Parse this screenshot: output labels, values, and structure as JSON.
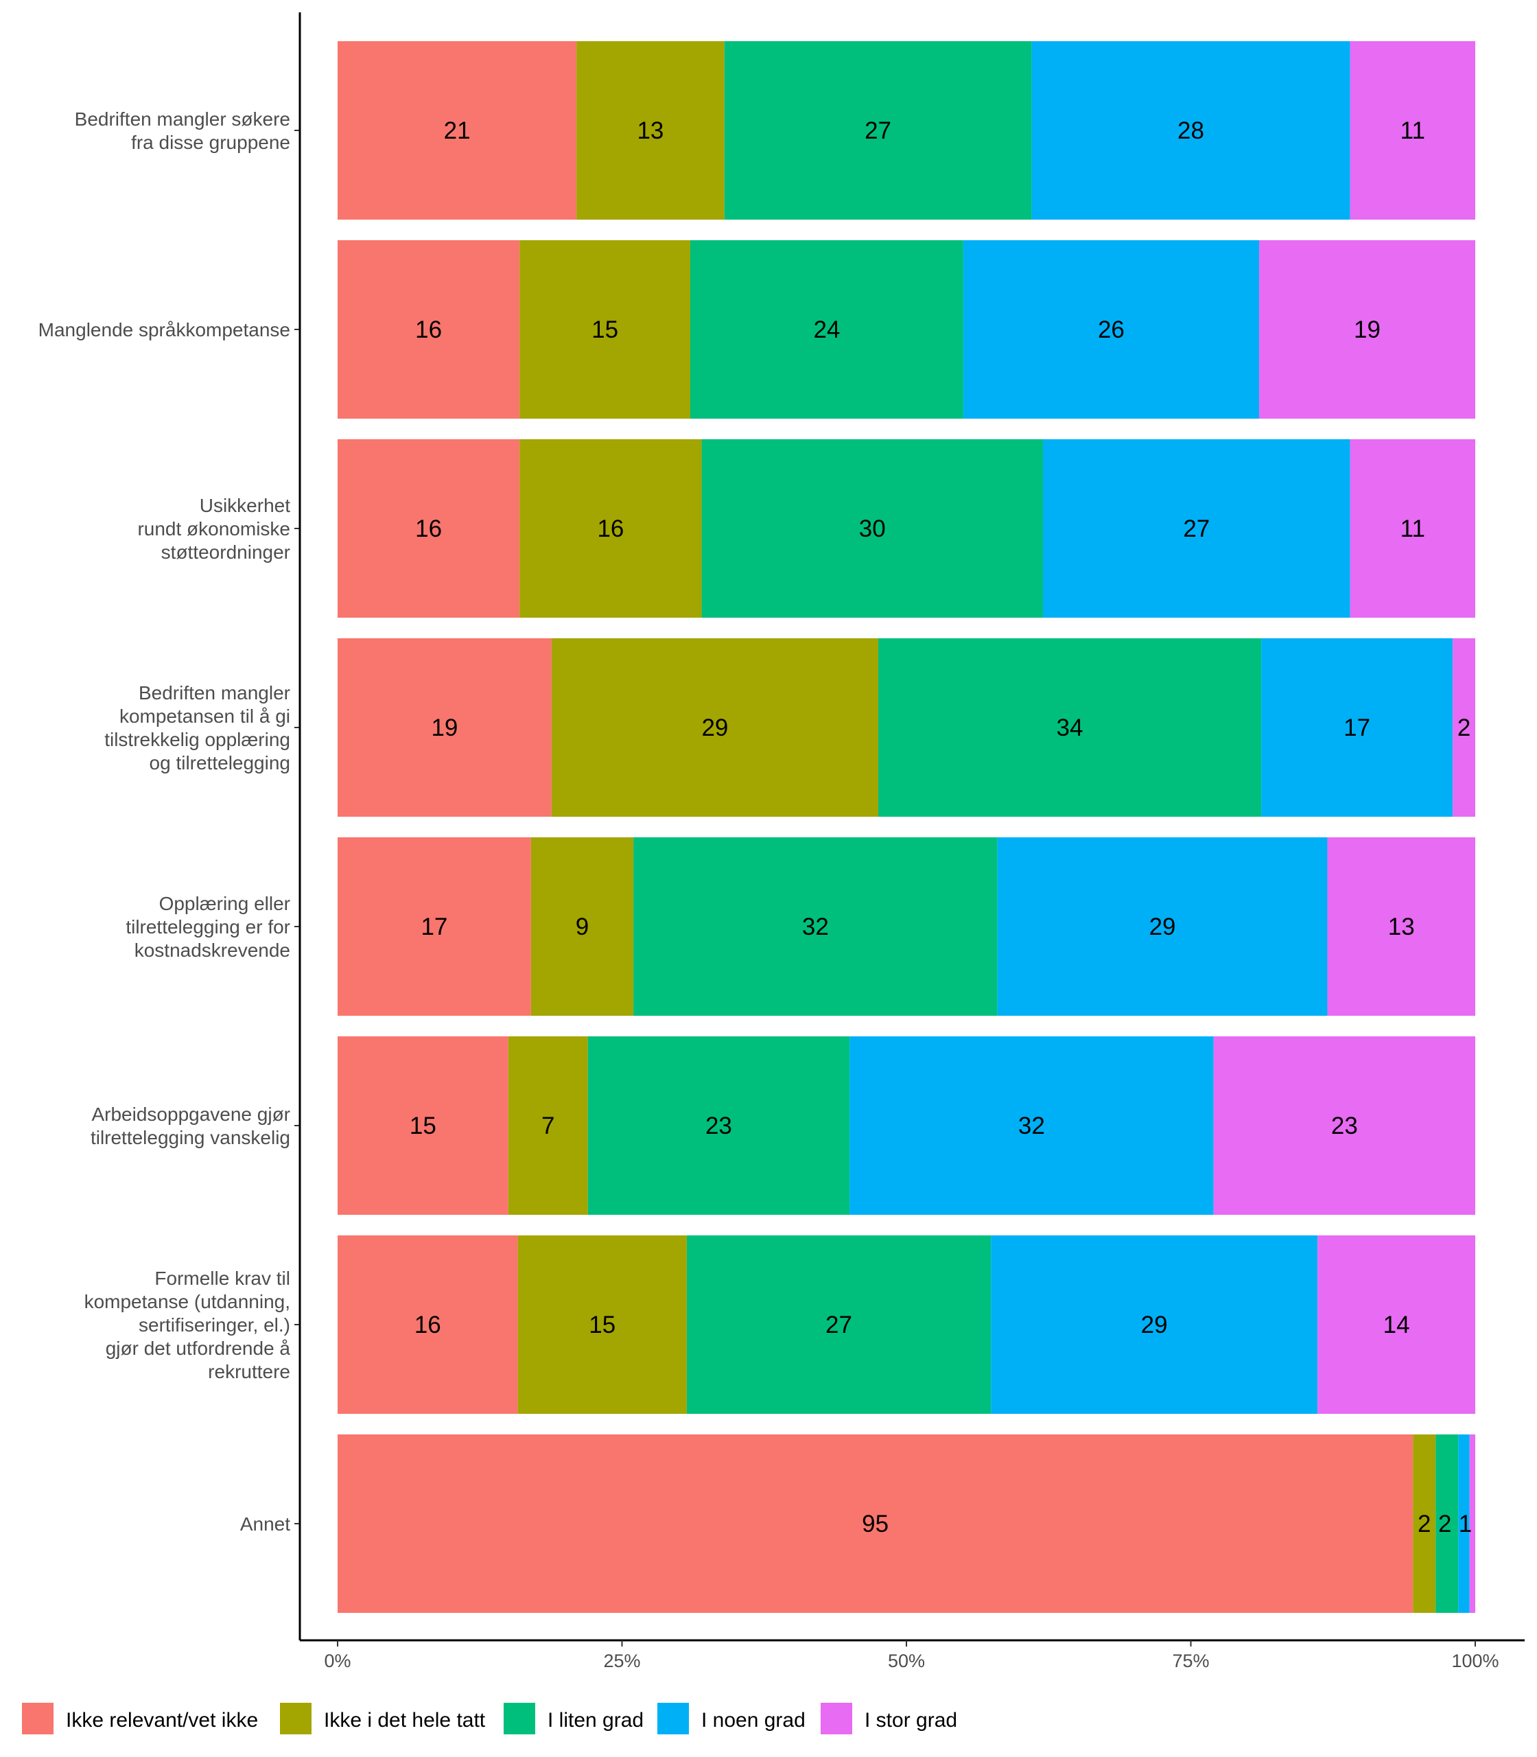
{
  "chart_data": {
    "type": "bar",
    "orientation": "horizontal",
    "stacked": true,
    "normalized_percent": true,
    "categories": [
      "Bedriften mangler søkere\nfra disse gruppene",
      "Manglende språkkompetanse",
      "Usikkerhet\nrundt økonomiske\nstøtteordninger",
      "Bedriften mangler\nkompetansen til å gi\ntilstrekkelig opplæring\nog tilrettelegging",
      "Opplæring eller\ntilrettelegging er for\nkostnadskrevende",
      "Arbeidsoppgavene gjør\ntilrettelegging vanskelig",
      "Formelle krav til\nkompetanse (utdanning,\nsertifiseringer, el.)\ngjør det utfordrende å\nrekruttere",
      "Annet"
    ],
    "series": [
      {
        "name": "Ikke relevant/vet ikke",
        "color": "#F8766D",
        "values": [
          21,
          16,
          16,
          19,
          17,
          15,
          16,
          95
        ]
      },
      {
        "name": "Ikke i det hele tatt",
        "color": "#A3A500",
        "values": [
          13,
          15,
          16,
          29,
          9,
          7,
          15,
          2
        ]
      },
      {
        "name": "I liten grad",
        "color": "#00BF7D",
        "values": [
          27,
          24,
          30,
          34,
          32,
          23,
          27,
          2
        ]
      },
      {
        "name": "I noen grad",
        "color": "#00B0F6",
        "values": [
          28,
          26,
          27,
          17,
          29,
          32,
          29,
          1
        ]
      },
      {
        "name": "I stor grad",
        "color": "#E76BF3",
        "values": [
          11,
          19,
          11,
          2,
          13,
          23,
          14,
          0.5
        ]
      }
    ],
    "labels_shown": [
      [
        "21",
        "13",
        "27",
        "28",
        "11"
      ],
      [
        "16",
        "15",
        "24",
        "26",
        "19"
      ],
      [
        "16",
        "16",
        "30",
        "27",
        "11"
      ],
      [
        "19",
        "29",
        "34",
        "17",
        "2"
      ],
      [
        "17",
        "9",
        "32",
        "29",
        "13"
      ],
      [
        "15",
        "7",
        "23",
        "32",
        "23"
      ],
      [
        "16",
        "15",
        "27",
        "29",
        "14"
      ],
      [
        "95",
        "2",
        "2",
        "1",
        ""
      ]
    ],
    "x_ticks": [
      "0%",
      "25%",
      "50%",
      "75%",
      "100%"
    ],
    "xlim": [
      0,
      100
    ],
    "legend_position": "bottom",
    "grid": false,
    "title": "",
    "xlabel": "",
    "ylabel": ""
  }
}
